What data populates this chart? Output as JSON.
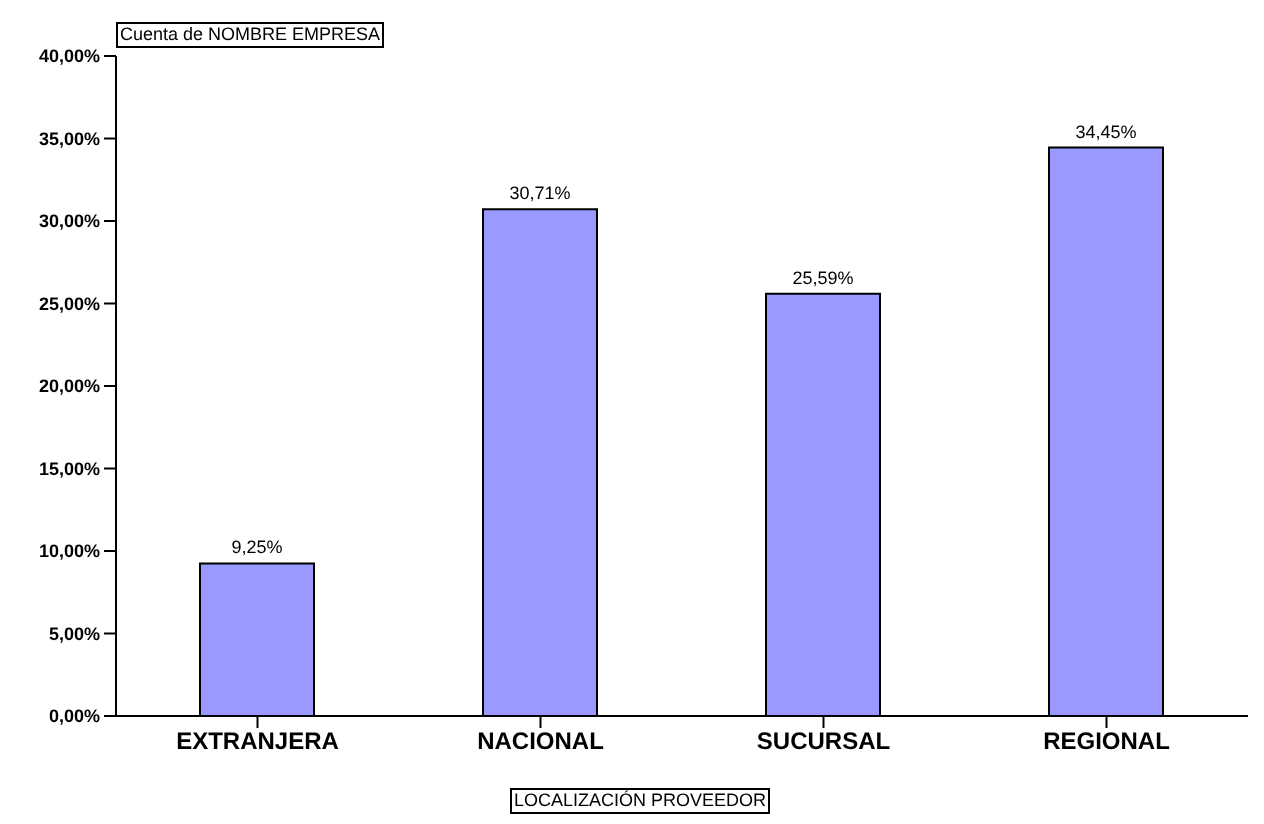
{
  "chart_data": {
    "type": "bar",
    "title": "Cuenta de NOMBRE EMPRESA",
    "xlabel": "LOCALIZACIÓN PROVEEDOR",
    "categories": [
      "EXTRANJERA",
      "NACIONAL",
      "SUCURSAL",
      "REGIONAL"
    ],
    "values": [
      9.25,
      30.71,
      25.59,
      34.45
    ],
    "value_labels": [
      "9,25%",
      "30,71%",
      "25,59%",
      "34,45%"
    ],
    "color": "#9999ff",
    "ylim": [
      0,
      40
    ],
    "yticks": [
      {
        "value": 0,
        "label": "0,00%"
      },
      {
        "value": 5,
        "label": "5,00%"
      },
      {
        "value": 10,
        "label": "10,00%"
      },
      {
        "value": 15,
        "label": "15,00%"
      },
      {
        "value": 20,
        "label": "20,00%"
      },
      {
        "value": 25,
        "label": "25,00%"
      },
      {
        "value": 30,
        "label": "30,00%"
      },
      {
        "value": 35,
        "label": "35,00%"
      },
      {
        "value": 40,
        "label": "40,00%"
      }
    ],
    "grid": false,
    "legend": false
  }
}
